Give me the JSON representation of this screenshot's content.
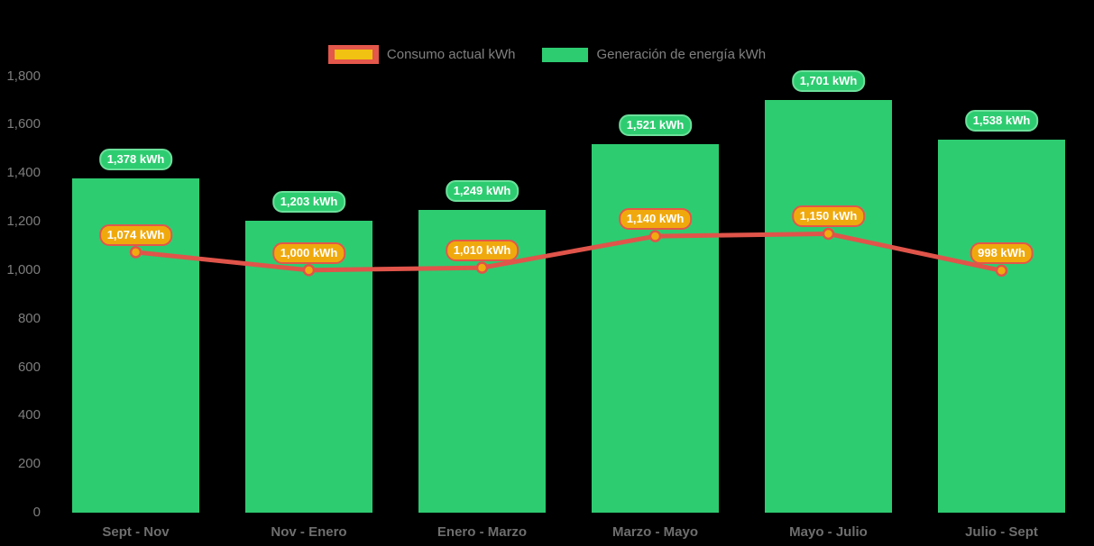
{
  "chart_data": {
    "type": "bar",
    "subtype": "bar-line-combo",
    "title": "",
    "xlabel": "",
    "ylabel": "",
    "categories": [
      "Sept - Nov",
      "Nov - Enero",
      "Enero - Marzo",
      "Marzo - Mayo",
      "Mayo - Julio",
      "Julio - Sept"
    ],
    "series": [
      {
        "name": "Consumo actual kWh",
        "type": "line",
        "values": [
          1074,
          1000,
          1010,
          1140,
          1150,
          998
        ],
        "labels": [
          "1,074 kWh",
          "1,000 kWh",
          "1,010 kWh",
          "1,140 kWh",
          "1,150 kWh",
          "998 kWh"
        ],
        "line_color": "#e0544a",
        "point_fill": "#f0ab0e",
        "badge_fill": "#f0a90d",
        "badge_border": "#e2574a"
      },
      {
        "name": "Generación de energía kWh",
        "type": "bar",
        "values": [
          1378,
          1203,
          1249,
          1521,
          1701,
          1538
        ],
        "labels": [
          "1,378 kWh",
          "1,203 kWh",
          "1,249 kWh",
          "1,521 kWh",
          "1,701 kWh",
          "1,538 kWh"
        ],
        "bar_color": "#2ecc71",
        "badge_fill": "#2ecc71",
        "badge_border": "#6ce09b"
      }
    ],
    "y_ticks": [
      "0",
      "200",
      "400",
      "600",
      "800",
      "1,000",
      "1,200",
      "1,400",
      "1,600",
      "1,800"
    ],
    "ylim": [
      0,
      1800
    ],
    "grid": false,
    "legend_position": "top",
    "background": "#000000",
    "axis_text_color": "#7d7d7d"
  }
}
